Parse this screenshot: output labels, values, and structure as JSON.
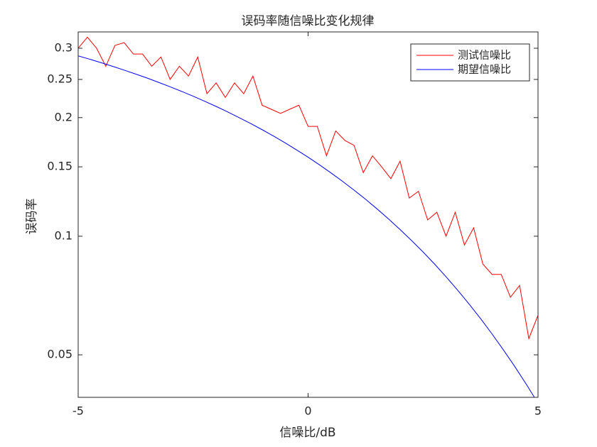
{
  "chart_data": {
    "type": "line",
    "title": "误码率随信噪比变化规律",
    "x_label": "信噪比/dB",
    "y_label": "误码率",
    "xlim": [
      -5,
      5
    ],
    "xticks": [
      -5,
      0,
      5
    ],
    "ylim": [
      0.039,
      0.33
    ],
    "yscale": "log",
    "yticks": [
      0.05,
      0.1,
      0.15,
      0.2,
      0.25,
      0.3
    ],
    "legend": "top-right",
    "series": [
      {
        "name": "测试信噪比",
        "color": "#ff0000",
        "x": [
          -5,
          -4.8,
          -4.6,
          -4.4,
          -4.2,
          -4,
          -3.8,
          -3.6,
          -3.4,
          -3.2,
          -3,
          -2.8,
          -2.6,
          -2.4,
          -2.2,
          -2,
          -1.8,
          -1.6,
          -1.4,
          -1.2,
          -1,
          -0.8,
          -0.6,
          -0.4,
          -0.2,
          0,
          0.2,
          0.4,
          0.6,
          0.8,
          1,
          1.2,
          1.4,
          1.6,
          1.8,
          2,
          2.2,
          2.4,
          2.6,
          2.8,
          3,
          3.2,
          3.4,
          3.6,
          3.8,
          4,
          4.2,
          4.4,
          4.6,
          4.8,
          5
        ],
        "values": [
          0.3,
          0.32,
          0.3,
          0.27,
          0.305,
          0.31,
          0.29,
          0.29,
          0.27,
          0.285,
          0.25,
          0.27,
          0.255,
          0.285,
          0.23,
          0.245,
          0.225,
          0.245,
          0.23,
          0.255,
          0.215,
          0.21,
          0.205,
          0.21,
          0.215,
          0.19,
          0.19,
          0.16,
          0.185,
          0.175,
          0.17,
          0.145,
          0.16,
          0.15,
          0.14,
          0.155,
          0.125,
          0.13,
          0.11,
          0.115,
          0.1,
          0.115,
          0.095,
          0.105,
          0.085,
          0.08,
          0.08,
          0.07,
          0.075,
          0.055,
          0.063
        ]
      },
      {
        "name": "期望信噪比",
        "color": "#0000ff",
        "x": [
          -5,
          -4.75,
          -4.5,
          -4.25,
          -4,
          -3.75,
          -3.5,
          -3.25,
          -3,
          -2.75,
          -2.5,
          -2.25,
          -2,
          -1.75,
          -1.5,
          -1.25,
          -1,
          -0.75,
          -0.5,
          -0.25,
          0,
          0.25,
          0.5,
          0.75,
          1,
          1.25,
          1.5,
          1.75,
          2,
          2.25,
          2.5,
          2.75,
          3,
          3.25,
          3.5,
          3.75,
          4,
          4.25,
          4.5,
          4.75,
          5
        ],
        "values": [
          0.2869,
          0.2814,
          0.2757,
          0.2699,
          0.264,
          0.258,
          0.252,
          0.2457,
          0.2395,
          0.2331,
          0.2267,
          0.2201,
          0.2135,
          0.2068,
          0.2,
          0.1932,
          0.1864,
          0.1795,
          0.1726,
          0.1656,
          0.1587,
          0.1517,
          0.1447,
          0.1378,
          0.1309,
          0.1241,
          0.1173,
          0.1106,
          0.104,
          0.0975,
          0.0912,
          0.085,
          0.0789,
          0.073,
          0.0673,
          0.0618,
          0.0565,
          0.0514,
          0.0466,
          0.042,
          0.0377
        ]
      }
    ]
  }
}
